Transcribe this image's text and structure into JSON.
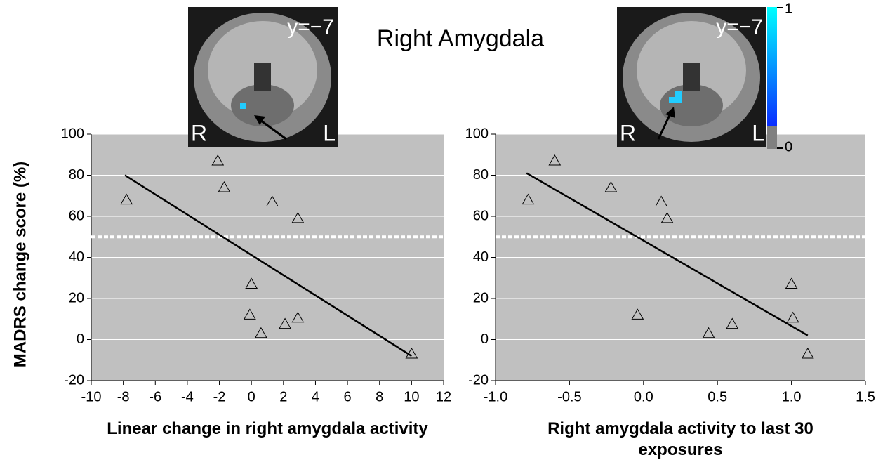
{
  "title": "Right Amygdala",
  "brain_images": [
    {
      "slice": "y=−7",
      "left": "R",
      "right": "L"
    },
    {
      "slice": "y=−7",
      "left": "R",
      "right": "L"
    }
  ],
  "colorbar": {
    "ticks": [
      "1",
      "0"
    ]
  },
  "chart_data": [
    {
      "type": "scatter",
      "ylabel": "MADRS change score (%)",
      "xlabel": "Linear change in right amygdala activity",
      "xlim": [
        -10,
        12
      ],
      "xticks": [
        -10,
        -8,
        -6,
        -4,
        -2,
        0,
        2,
        4,
        6,
        8,
        10,
        12
      ],
      "ylim": [
        -20,
        100
      ],
      "yticks": [
        -20,
        0,
        20,
        40,
        60,
        80,
        100
      ],
      "x": [
        -7.8,
        -2.1,
        -1.7,
        1.3,
        2.9,
        0,
        -0.1,
        0.6,
        2.1,
        2.9,
        10
      ],
      "y": [
        68,
        87,
        74,
        67,
        59,
        27,
        12,
        3,
        7.5,
        10.5,
        -7
      ],
      "marker_color": "#000000",
      "background": "#c0c0c0",
      "grid": true,
      "reference_line": {
        "y": 50,
        "color": "#ffffff"
      },
      "trend_line": {
        "x": [
          -7.9,
          10
        ],
        "y": [
          80,
          -8
        ]
      }
    },
    {
      "type": "scatter",
      "xlabel": "Right amygdala activity to last 30 exposures",
      "xlim": [
        -1,
        1.5
      ],
      "xticks": [
        {
          "value": -1,
          "label": "-1.0"
        },
        -0.5,
        {
          "value": 0,
          "label": "0.0"
        },
        0.5,
        {
          "value": 1,
          "label": "1.0"
        },
        1.5
      ],
      "ylim": [
        -20,
        100
      ],
      "yticks": [
        -20,
        0,
        20,
        40,
        60,
        80,
        100
      ],
      "x": [
        -0.78,
        -0.6,
        -0.22,
        0.12,
        0.16,
        -0.04,
        0.44,
        0.6,
        1.0,
        1.01,
        1.11
      ],
      "y": [
        68,
        87,
        74,
        67,
        59,
        12,
        3,
        7.5,
        27,
        10.5,
        -7
      ],
      "marker_color": "#000000",
      "background": "#c0c0c0",
      "grid": true,
      "reference_line": {
        "y": 50,
        "color": "#ffffff"
      },
      "trend_line": {
        "x": [
          -0.79,
          1.11
        ],
        "y": [
          81,
          2
        ]
      }
    }
  ]
}
